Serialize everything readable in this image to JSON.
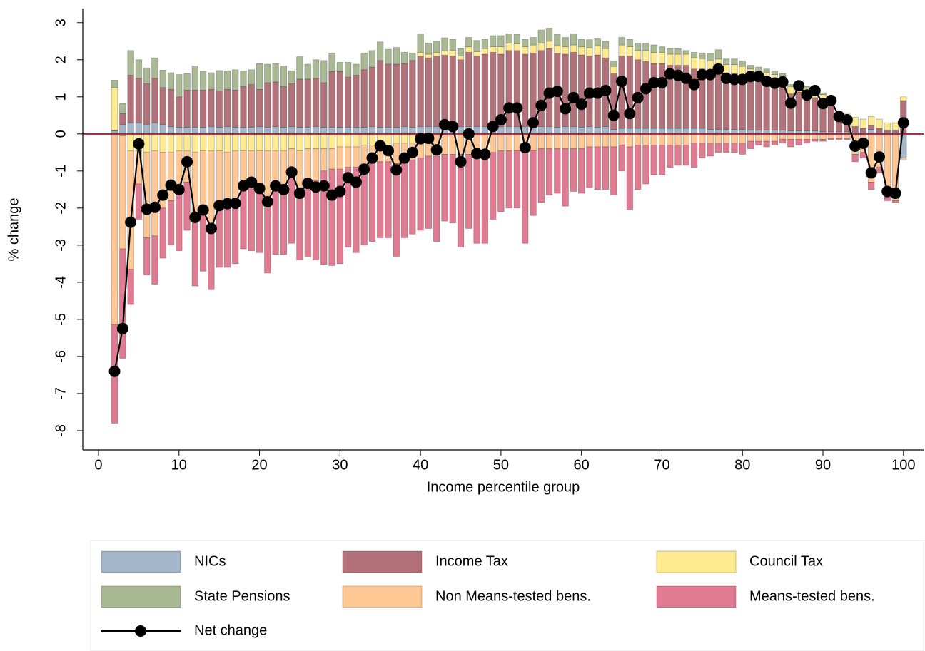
{
  "chart_data": {
    "type": "bar",
    "stacked": true,
    "x_label": "Income percentile group",
    "y_label": "% change",
    "xlim": [
      -1.95,
      102.5
    ],
    "ylim": [
      -8.52,
      3.38
    ],
    "xticks": [
      0,
      10,
      20,
      30,
      40,
      50,
      60,
      70,
      80,
      90,
      100
    ],
    "yticks": [
      -8,
      -7,
      -6,
      -5,
      -4,
      -3,
      -2,
      -1,
      0,
      1,
      2,
      3
    ],
    "grid": false,
    "reference_line": {
      "y": 0,
      "color": "#c8102e"
    },
    "legend_position": "bottom",
    "x": [
      2,
      3,
      4,
      5,
      6,
      7,
      8,
      9,
      10,
      11,
      12,
      13,
      14,
      15,
      16,
      17,
      18,
      19,
      20,
      21,
      22,
      23,
      24,
      25,
      26,
      27,
      28,
      29,
      30,
      31,
      32,
      33,
      34,
      35,
      36,
      37,
      38,
      39,
      40,
      41,
      42,
      43,
      44,
      45,
      46,
      47,
      48,
      49,
      50,
      51,
      52,
      53,
      54,
      55,
      56,
      57,
      58,
      59,
      60,
      61,
      62,
      63,
      64,
      65,
      66,
      67,
      68,
      69,
      70,
      71,
      72,
      73,
      74,
      75,
      76,
      77,
      78,
      79,
      80,
      81,
      82,
      83,
      84,
      85,
      86,
      87,
      88,
      89,
      90,
      91,
      92,
      93,
      94,
      95,
      96,
      97,
      98,
      99,
      100
    ],
    "series": [
      {
        "name": "NICs",
        "type": "bar",
        "color": "#a3b5c8",
        "values": [
          0.08,
          0.25,
          0.3,
          0.3,
          0.25,
          0.3,
          0.25,
          0.2,
          0.18,
          0.18,
          0.18,
          0.18,
          0.2,
          0.18,
          0.2,
          0.18,
          0.18,
          0.18,
          0.2,
          0.18,
          0.2,
          0.18,
          0.2,
          0.18,
          0.18,
          0.2,
          0.18,
          0.18,
          0.18,
          0.18,
          0.18,
          0.18,
          0.2,
          0.18,
          0.18,
          0.18,
          0.2,
          0.18,
          0.2,
          0.2,
          0.2,
          0.22,
          0.2,
          0.2,
          0.2,
          0.2,
          0.2,
          0.2,
          0.2,
          0.2,
          0.2,
          0.2,
          0.18,
          0.2,
          0.2,
          0.18,
          0.2,
          0.2,
          0.18,
          0.2,
          0.18,
          0.2,
          0.12,
          0.15,
          0.15,
          0.15,
          0.15,
          0.15,
          0.15,
          0.15,
          0.15,
          0.15,
          0.15,
          0.15,
          0.12,
          0.12,
          0.12,
          0.12,
          0.12,
          0.1,
          0.1,
          0.1,
          0.1,
          0.1,
          0.08,
          0.08,
          0.08,
          0.08,
          0.06,
          0.06,
          0.06,
          0.06,
          0.05,
          0.05,
          0.12,
          0.05,
          0.05,
          0.05,
          -0.65
        ]
      },
      {
        "name": "Income Tax",
        "type": "bar",
        "color": "#b3727a",
        "values": [
          0.02,
          0.3,
          1.28,
          1.2,
          1.1,
          1.2,
          1.0,
          1.0,
          0.82,
          1.0,
          1.0,
          1.0,
          1.0,
          0.98,
          1.0,
          1.0,
          1.1,
          1.15,
          1.0,
          1.2,
          1.2,
          1.1,
          1.15,
          1.3,
          1.3,
          1.3,
          1.2,
          1.5,
          1.5,
          1.35,
          1.4,
          1.55,
          1.6,
          1.8,
          1.7,
          1.7,
          1.7,
          1.8,
          1.9,
          1.85,
          1.9,
          1.9,
          1.9,
          1.8,
          2.0,
          1.9,
          1.95,
          2.0,
          1.95,
          2.05,
          2.05,
          1.95,
          2.0,
          2.05,
          2.1,
          2.0,
          1.95,
          2.0,
          1.95,
          1.9,
          1.95,
          1.85,
          1.5,
          1.95,
          1.95,
          1.85,
          1.8,
          1.75,
          1.75,
          1.7,
          1.7,
          1.7,
          1.6,
          1.6,
          1.55,
          1.6,
          1.5,
          1.5,
          1.45,
          1.4,
          1.35,
          1.3,
          1.25,
          1.2,
          1.0,
          1.05,
          0.95,
          0.9,
          0.8,
          0.7,
          0.35,
          0.25,
          0.15,
          0.1,
          0.1,
          0.1,
          0.05,
          0.05,
          0.9
        ]
      },
      {
        "name": "Council Tax",
        "type": "bar",
        "color": "#ffeb8f",
        "values": [
          1.15,
          -0.05,
          -0.45,
          -0.45,
          -0.5,
          -0.45,
          -0.5,
          -0.5,
          -0.45,
          -0.45,
          -0.5,
          -0.45,
          -0.45,
          -0.45,
          -0.5,
          -0.45,
          -0.45,
          -0.45,
          -0.45,
          -0.45,
          -0.45,
          -0.45,
          -0.4,
          -0.45,
          -0.4,
          -0.4,
          -0.4,
          -0.4,
          -0.35,
          -0.35,
          -0.35,
          -0.3,
          -0.3,
          -0.3,
          -0.3,
          -0.25,
          -0.25,
          -0.25,
          0.1,
          0.1,
          0.1,
          0.12,
          0.15,
          0.1,
          0.15,
          0.12,
          0.15,
          0.15,
          0.2,
          0.2,
          0.18,
          0.2,
          0.22,
          0.2,
          0.2,
          0.2,
          0.2,
          0.2,
          0.22,
          0.22,
          0.25,
          0.25,
          0.2,
          0.3,
          0.25,
          0.25,
          0.3,
          0.3,
          0.3,
          0.3,
          0.3,
          0.3,
          0.3,
          0.28,
          0.3,
          0.3,
          0.25,
          0.25,
          0.25,
          0.25,
          0.25,
          0.25,
          0.25,
          0.25,
          0.2,
          0.2,
          0.2,
          0.2,
          0.2,
          0.2,
          0.2,
          0.25,
          0.25,
          0.25,
          0.25,
          0.25,
          0.2,
          0.2,
          0.1
        ]
      },
      {
        "name": "State Pensions",
        "type": "bar",
        "color": "#a9b994",
        "values": [
          0.2,
          0.27,
          0.67,
          0.5,
          0.43,
          0.55,
          0.47,
          0.45,
          0.6,
          0.45,
          0.65,
          0.5,
          0.45,
          0.55,
          0.5,
          0.55,
          0.42,
          0.4,
          0.7,
          0.5,
          0.5,
          0.55,
          0.35,
          0.6,
          0.4,
          0.5,
          0.6,
          0.5,
          0.25,
          0.4,
          0.3,
          0.45,
          0.45,
          0.5,
          0.4,
          0.45,
          0.3,
          0.2,
          0.5,
          0.3,
          0.3,
          0.35,
          0.3,
          0.2,
          0.25,
          0.3,
          0.25,
          0.3,
          0.3,
          0.25,
          0.25,
          0.2,
          0.2,
          0.35,
          0.35,
          0.3,
          0.25,
          0.3,
          0.2,
          0.22,
          0.2,
          0.2,
          0.15,
          0.2,
          0.2,
          0.2,
          0.2,
          0.2,
          0.15,
          0.15,
          0.15,
          0.1,
          0.15,
          0.15,
          0.2,
          0.25,
          0.15,
          0.15,
          0.15,
          0.1,
          0.1,
          0.1,
          0.1,
          0.08,
          0.05,
          0.05,
          0.05,
          0.05,
          0.05,
          0,
          0,
          0,
          0,
          0,
          0,
          0,
          0,
          0,
          0
        ]
      },
      {
        "name": "Non Means-tested bens.",
        "type": "bar",
        "color": "#fec794",
        "values": [
          -5.15,
          -3.05,
          -3.2,
          -0.9,
          -2.3,
          -2.3,
          -1.5,
          -1.3,
          -1.1,
          -0.85,
          -1.75,
          -1.55,
          -2.05,
          -1.45,
          -1.4,
          -1.5,
          -0.95,
          -1.0,
          -1.15,
          -1.4,
          -0.85,
          -1.05,
          -0.6,
          -1.0,
          -0.8,
          -0.85,
          -0.6,
          -0.55,
          -0.6,
          -0.55,
          -0.55,
          -0.55,
          -0.5,
          -0.45,
          -0.45,
          -0.55,
          -0.45,
          -0.45,
          -0.65,
          -0.6,
          -0.6,
          -0.55,
          -0.55,
          -0.55,
          -0.55,
          -0.5,
          -0.5,
          -0.5,
          -0.45,
          -0.45,
          -0.45,
          -0.5,
          -0.45,
          -0.4,
          -0.4,
          -0.4,
          -0.4,
          -0.4,
          -0.4,
          -0.35,
          -0.35,
          -0.35,
          -0.35,
          -0.3,
          -0.35,
          -0.3,
          -0.3,
          -0.3,
          -0.3,
          -0.3,
          -0.3,
          -0.3,
          -0.25,
          -0.25,
          -0.25,
          -0.25,
          -0.25,
          -0.25,
          -0.25,
          -0.2,
          -0.2,
          -0.2,
          -0.2,
          -0.15,
          -0.15,
          -0.15,
          -0.15,
          -0.15,
          -0.15,
          -0.12,
          -0.12,
          -0.12,
          -0.55,
          -0.5,
          -1.3,
          -0.9,
          -1.7,
          -1.8,
          -0.05
        ]
      },
      {
        "name": "Means-tested bens.",
        "type": "bar",
        "color": "#e07b91",
        "values": [
          -2.65,
          -2.95,
          -0.95,
          -0.95,
          -1.0,
          -1.3,
          -1.35,
          -1.2,
          -1.6,
          -1.3,
          -1.85,
          -1.7,
          -1.7,
          -1.7,
          -1.7,
          -1.55,
          -1.7,
          -1.7,
          -1.6,
          -1.9,
          -1.95,
          -1.75,
          -1.95,
          -1.95,
          -2.1,
          -2.15,
          -2.52,
          -2.6,
          -2.55,
          -2.15,
          -2.3,
          -2.15,
          -2.1,
          -2.05,
          -2.05,
          -2.5,
          -2.1,
          -2.0,
          -1.95,
          -1.95,
          -2.3,
          -1.8,
          -1.85,
          -2.5,
          -2.0,
          -2.45,
          -2.45,
          -1.8,
          -1.65,
          -1.55,
          -1.55,
          -2.45,
          -1.75,
          -1.45,
          -1.25,
          -1.2,
          -1.55,
          -1.15,
          -1.2,
          -1.1,
          -1.15,
          -1.15,
          -1.3,
          -0.7,
          -1.7,
          -1.2,
          -1.05,
          -0.8,
          -0.8,
          -0.6,
          -0.55,
          -0.55,
          -0.65,
          -0.4,
          -0.35,
          -0.25,
          -0.25,
          -0.25,
          -0.3,
          -0.2,
          -0.1,
          -0.15,
          -0.1,
          -0.1,
          -0.2,
          -0.15,
          -0.1,
          -0.05,
          -0.05,
          -0.03,
          -0.03,
          -0.03,
          -0.2,
          -0.15,
          -0.2,
          -0.15,
          -0.1,
          -0.05,
          0
        ]
      },
      {
        "name": "Net change",
        "type": "line",
        "color": "#000000",
        "values": [
          -6.4,
          -5.25,
          -2.38,
          -0.27,
          -2.03,
          -1.98,
          -1.65,
          -1.38,
          -1.5,
          -0.75,
          -2.25,
          -2.05,
          -2.55,
          -1.93,
          -1.88,
          -1.87,
          -1.4,
          -1.3,
          -1.47,
          -1.83,
          -1.4,
          -1.5,
          -1.03,
          -1.6,
          -1.33,
          -1.43,
          -1.4,
          -1.65,
          -1.55,
          -1.18,
          -1.3,
          -0.95,
          -0.65,
          -0.32,
          -0.45,
          -0.97,
          -0.65,
          -0.5,
          -0.13,
          -0.12,
          -0.43,
          0.25,
          0.2,
          -0.75,
          0.0,
          -0.53,
          -0.55,
          0.2,
          0.38,
          0.7,
          0.7,
          -0.37,
          0.3,
          0.77,
          1.1,
          1.15,
          0.68,
          0.98,
          0.8,
          1.1,
          1.1,
          1.17,
          0.5,
          1.42,
          0.55,
          0.98,
          1.22,
          1.38,
          1.38,
          1.62,
          1.58,
          1.5,
          1.33,
          1.6,
          1.6,
          1.75,
          1.5,
          1.47,
          1.47,
          1.55,
          1.55,
          1.42,
          1.37,
          1.4,
          0.83,
          1.3,
          1.05,
          1.17,
          0.82,
          0.9,
          0.47,
          0.38,
          -0.33,
          -0.25,
          -1.05,
          -0.62,
          -1.55,
          -1.6,
          0.3
        ]
      }
    ]
  }
}
